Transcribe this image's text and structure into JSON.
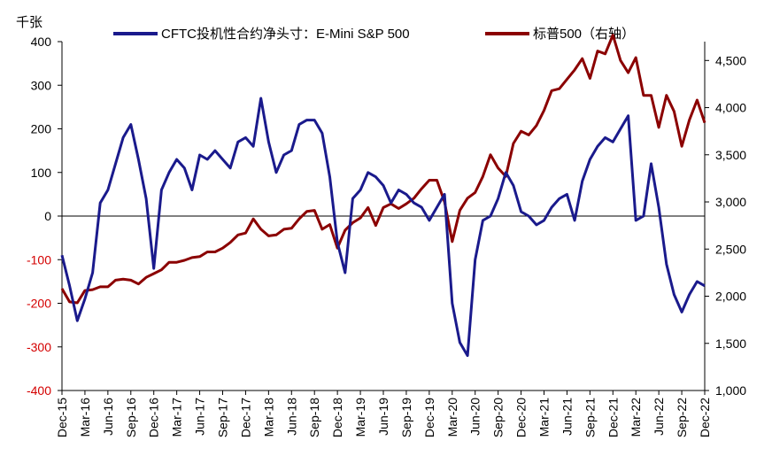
{
  "chart_data": {
    "type": "line",
    "left_axis_unit": "千张",
    "left_axis": {
      "min": -400,
      "max": 400,
      "ticks": [
        400,
        300,
        200,
        100,
        0,
        -100,
        -200,
        -300,
        -400
      ]
    },
    "right_axis": {
      "min": 1000,
      "max": 4700,
      "ticks": [
        4500,
        4000,
        3500,
        3000,
        2500,
        2000,
        1500,
        1000
      ],
      "tick_labels": [
        "4,500",
        "4,000",
        "3,500",
        "3,000",
        "2,500",
        "2,000",
        "1,500",
        "1,000"
      ]
    },
    "x_tick_labels": [
      "Dec-15",
      "Mar-16",
      "Jun-16",
      "Sep-16",
      "Dec-16",
      "Mar-17",
      "Jun-17",
      "Sep-17",
      "Dec-17",
      "Mar-18",
      "Jun-18",
      "Sep-18",
      "Dec-18",
      "Mar-19",
      "Jun-19",
      "Sep-19",
      "Dec-19",
      "Mar-20",
      "Jun-20",
      "Sep-20",
      "Dec-20",
      "Mar-21",
      "Jun-21",
      "Sep-21",
      "Dec-21",
      "Mar-22",
      "Jun-22",
      "Sep-22",
      "Dec-22"
    ],
    "series": [
      {
        "name": "CFTC投机性合约净头寸：E-Mini S&P 500",
        "axis": "left",
        "color": "#1a1a8c",
        "x": [
          "Dec-15",
          "Jan-16",
          "Feb-16",
          "Mar-16",
          "Apr-16",
          "May-16",
          "Jun-16",
          "Jul-16",
          "Aug-16",
          "Sep-16",
          "Oct-16",
          "Nov-16",
          "Dec-16",
          "Jan-17",
          "Feb-17",
          "Mar-17",
          "Apr-17",
          "May-17",
          "Jun-17",
          "Jul-17",
          "Aug-17",
          "Sep-17",
          "Oct-17",
          "Nov-17",
          "Dec-17",
          "Jan-18",
          "Feb-18",
          "Mar-18",
          "Apr-18",
          "May-18",
          "Jun-18",
          "Jul-18",
          "Aug-18",
          "Sep-18",
          "Oct-18",
          "Nov-18",
          "Dec-18",
          "Jan-19",
          "Feb-19",
          "Mar-19",
          "Apr-19",
          "May-19",
          "Jun-19",
          "Jul-19",
          "Aug-19",
          "Sep-19",
          "Oct-19",
          "Nov-19",
          "Dec-19",
          "Jan-20",
          "Feb-20",
          "Mar-20",
          "Apr-20",
          "May-20",
          "Jun-20",
          "Jul-20",
          "Aug-20",
          "Sep-20",
          "Oct-20",
          "Nov-20",
          "Dec-20",
          "Jan-21",
          "Feb-21",
          "Mar-21",
          "Apr-21",
          "May-21",
          "Jun-21",
          "Jul-21",
          "Aug-21",
          "Sep-21",
          "Oct-21",
          "Nov-21",
          "Dec-21",
          "Jan-22",
          "Feb-22",
          "Mar-22",
          "Apr-22",
          "May-22",
          "Jun-22",
          "Jul-22",
          "Aug-22",
          "Sep-22",
          "Oct-22",
          "Nov-22",
          "Dec-22"
        ],
        "values": [
          -90,
          -160,
          -240,
          -190,
          -130,
          30,
          60,
          120,
          180,
          210,
          130,
          40,
          -120,
          60,
          100,
          130,
          110,
          60,
          140,
          130,
          150,
          130,
          110,
          170,
          180,
          160,
          270,
          170,
          100,
          140,
          150,
          210,
          220,
          220,
          190,
          90,
          -60,
          -130,
          40,
          60,
          100,
          90,
          70,
          30,
          60,
          50,
          30,
          20,
          -10,
          20,
          50,
          -200,
          -290,
          -320,
          -100,
          -10,
          0,
          40,
          100,
          70,
          10,
          0,
          -20,
          -10,
          20,
          40,
          50,
          -10,
          80,
          130,
          160,
          180,
          170,
          200,
          230,
          -10,
          0,
          120,
          20,
          -110,
          -180,
          -220,
          -180,
          -150,
          -160
        ]
      },
      {
        "name": "标普500（右轴）",
        "axis": "right",
        "color": "#8b0000",
        "x": [
          "Dec-15",
          "Jan-16",
          "Feb-16",
          "Mar-16",
          "Apr-16",
          "May-16",
          "Jun-16",
          "Jul-16",
          "Aug-16",
          "Sep-16",
          "Oct-16",
          "Nov-16",
          "Dec-16",
          "Jan-17",
          "Feb-17",
          "Mar-17",
          "Apr-17",
          "May-17",
          "Jun-17",
          "Jul-17",
          "Aug-17",
          "Sep-17",
          "Oct-17",
          "Nov-17",
          "Dec-17",
          "Jan-18",
          "Feb-18",
          "Mar-18",
          "Apr-18",
          "May-18",
          "Jun-18",
          "Jul-18",
          "Aug-18",
          "Sep-18",
          "Oct-18",
          "Nov-18",
          "Dec-18",
          "Jan-19",
          "Feb-19",
          "Mar-19",
          "Apr-19",
          "May-19",
          "Jun-19",
          "Jul-19",
          "Aug-19",
          "Sep-19",
          "Oct-19",
          "Nov-19",
          "Dec-19",
          "Jan-20",
          "Feb-20",
          "Mar-20",
          "Apr-20",
          "May-20",
          "Jun-20",
          "Jul-20",
          "Aug-20",
          "Sep-20",
          "Oct-20",
          "Nov-20",
          "Dec-20",
          "Jan-21",
          "Feb-21",
          "Mar-21",
          "Apr-21",
          "May-21",
          "Jun-21",
          "Jul-21",
          "Aug-21",
          "Sep-21",
          "Oct-21",
          "Nov-21",
          "Dec-21",
          "Jan-22",
          "Feb-22",
          "Mar-22",
          "Apr-22",
          "May-22",
          "Jun-22",
          "Jul-22",
          "Aug-22",
          "Sep-22",
          "Oct-22",
          "Nov-22",
          "Dec-22"
        ],
        "values": [
          2080,
          1940,
          1930,
          2060,
          2070,
          2100,
          2100,
          2170,
          2180,
          2170,
          2130,
          2200,
          2240,
          2280,
          2360,
          2360,
          2380,
          2410,
          2420,
          2470,
          2470,
          2510,
          2570,
          2650,
          2670,
          2820,
          2710,
          2640,
          2650,
          2710,
          2720,
          2820,
          2900,
          2910,
          2710,
          2760,
          2510,
          2700,
          2780,
          2830,
          2940,
          2750,
          2940,
          2980,
          2930,
          2980,
          3040,
          3140,
          3230,
          3230,
          3000,
          2580,
          2910,
          3040,
          3100,
          3270,
          3500,
          3360,
          3270,
          3620,
          3750,
          3710,
          3810,
          3970,
          4180,
          4200,
          4300,
          4400,
          4520,
          4310,
          4600,
          4570,
          4770,
          4500,
          4370,
          4530,
          4130,
          4130,
          3790,
          4130,
          3960,
          3590,
          3870,
          4080,
          3840
        ]
      }
    ]
  }
}
